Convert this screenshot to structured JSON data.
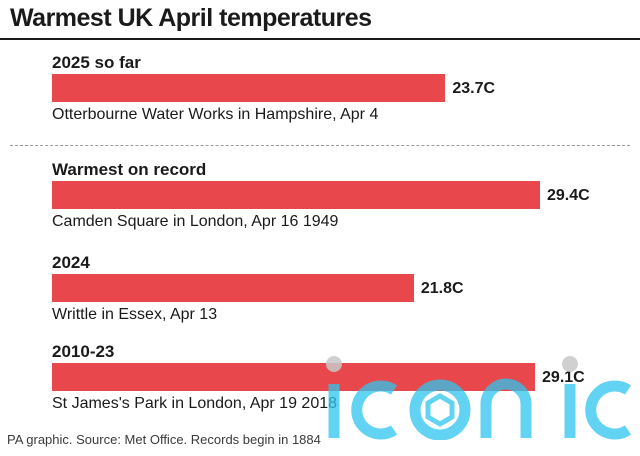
{
  "title": "Warmest UK April temperatures",
  "footer": "PA graphic. Source: Met Office. Records begin in 1884",
  "watermark_text": "iconic",
  "colors": {
    "bar": "#e8474b",
    "text": "#1a1a1a",
    "watermark": "#2ec5ee",
    "watermark_dot": "#c8c8c8"
  },
  "chart_data": {
    "type": "bar",
    "orientation": "horizontal",
    "title": "Warmest UK April temperatures",
    "xlim": [
      0,
      30
    ],
    "grid": false,
    "categories": [
      "2025 so far",
      "Warmest on record",
      "2024",
      "2010-23"
    ],
    "values": [
      23.7,
      29.4,
      21.8,
      29.1
    ],
    "value_labels": [
      "23.7C",
      "29.4C",
      "21.8C",
      "29.1C"
    ],
    "captions": [
      "Otterbourne Water Works in Hampshire, Apr 4",
      "Camden Square in London, Apr 16 1949",
      "Writtle in Essex, Apr 13",
      "St James's Park in London, Apr 19 2018"
    ]
  }
}
